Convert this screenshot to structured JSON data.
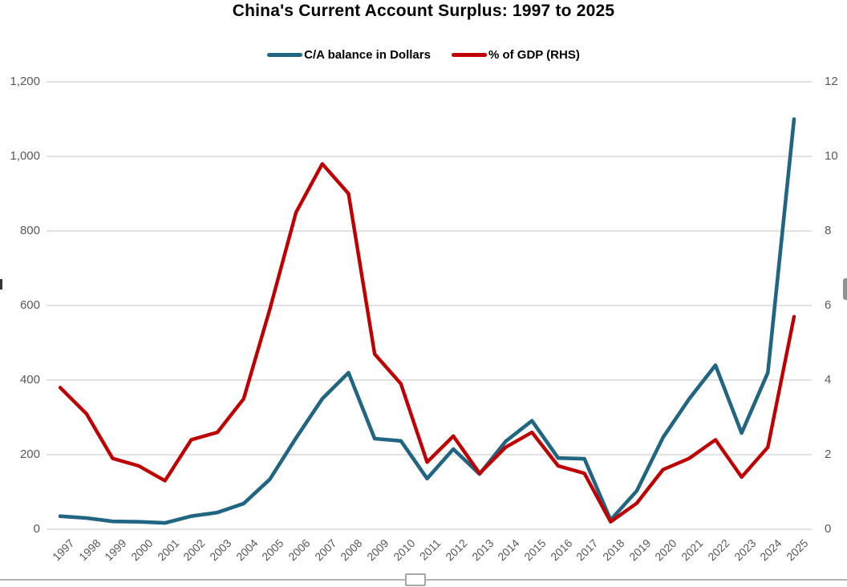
{
  "chart_data": {
    "type": "line",
    "title": "China's Current Account Surplus: 1997 to 2025",
    "categories": [
      "1997",
      "1998",
      "1999",
      "2000",
      "2001",
      "2002",
      "2003",
      "2004",
      "2005",
      "2006",
      "2007",
      "2008",
      "2009",
      "2010",
      "2011",
      "2012",
      "2013",
      "2014",
      "2015",
      "2016",
      "2017",
      "2018",
      "2019",
      "2020",
      "2021",
      "2022",
      "2023",
      "2024",
      "2025"
    ],
    "series": [
      {
        "name": "C/A balance in Dollars",
        "axis": "left",
        "color": "#206581",
        "values": [
          35,
          30,
          21,
          20,
          17,
          35,
          45,
          69,
          134,
          245,
          350,
          420,
          243,
          237,
          136,
          215,
          148,
          236,
          291,
          191,
          189,
          25,
          103,
          246,
          350,
          440,
          258,
          420,
          1100
        ]
      },
      {
        "name": "% of GDP (RHS)",
        "axis": "right",
        "color": "#C00000",
        "values": [
          3.8,
          3.1,
          1.9,
          1.7,
          1.3,
          2.4,
          2.6,
          3.5,
          5.9,
          8.5,
          9.8,
          9.0,
          4.7,
          3.9,
          1.8,
          2.5,
          1.5,
          2.2,
          2.6,
          1.7,
          1.5,
          0.2,
          0.7,
          1.6,
          1.9,
          2.4,
          1.4,
          2.2,
          5.7
        ]
      }
    ],
    "left_axis": {
      "min": 0,
      "max": 1200,
      "step": 200,
      "tick_labels": [
        "1,200",
        "1,000",
        "800",
        "600",
        "400",
        "200",
        "0"
      ]
    },
    "right_axis": {
      "min": 0,
      "max": 12,
      "step": 2,
      "tick_labels": [
        "12",
        "10",
        "8",
        "6",
        "4",
        "2",
        "0"
      ]
    },
    "legend_position": "top",
    "grid": "horizontal",
    "gridline_color": "#d9d9d9",
    "tick_label_color": "#595959"
  }
}
